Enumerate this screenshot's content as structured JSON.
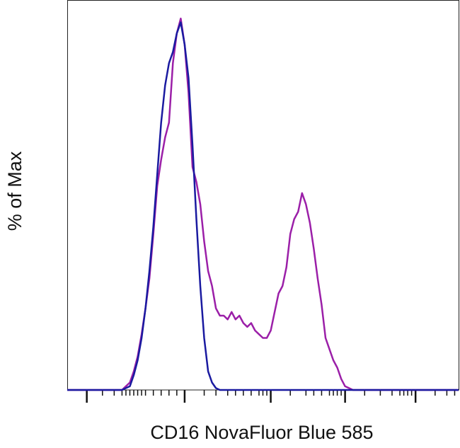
{
  "chart_data": {
    "type": "line",
    "y_label": "% of Max",
    "x_label": "CD16 NovaFluor Blue 585",
    "x": [
      0,
      10,
      14,
      15,
      16,
      17,
      18,
      19,
      20,
      21,
      22,
      23,
      24,
      25,
      26,
      27,
      28,
      29,
      30,
      31,
      32,
      33,
      34,
      35,
      36,
      37,
      38,
      39,
      40,
      41,
      42,
      43,
      44,
      45,
      46,
      47,
      48,
      49,
      50,
      51,
      52,
      53,
      54,
      55,
      56,
      57,
      58,
      59,
      60,
      61,
      62,
      63,
      64,
      65,
      66,
      67,
      68,
      69,
      70,
      71,
      72,
      73,
      74,
      75,
      76,
      77,
      78,
      80,
      85,
      90,
      95,
      100
    ],
    "series": [
      {
        "color": "#9b1fa8",
        "values": [
          0,
          0,
          0,
          1,
          2,
          5,
          9,
          15,
          22,
          30,
          42,
          55,
          62,
          68,
          72,
          88,
          96,
          100,
          93,
          80,
          60,
          56,
          50,
          40,
          32,
          28,
          22,
          20,
          20,
          19,
          21,
          19,
          20,
          18,
          17,
          18,
          16,
          15,
          14,
          14,
          16,
          21,
          26,
          28,
          33,
          42,
          46,
          48,
          53,
          50,
          45,
          38,
          30,
          23,
          14,
          11,
          8,
          6,
          3,
          1,
          0.5,
          0,
          0,
          0,
          0,
          0,
          0,
          0,
          0,
          0,
          0,
          0
        ]
      },
      {
        "color": "#1a1aa0",
        "values": [
          0,
          0,
          0,
          0.5,
          1,
          4,
          8,
          14,
          22,
          32,
          44,
          58,
          72,
          82,
          88,
          91,
          96,
          99,
          93,
          84,
          66,
          46,
          28,
          14,
          5,
          2,
          0.5,
          0,
          0,
          0,
          0,
          0,
          0,
          0,
          0,
          0,
          0,
          0,
          0,
          0,
          0,
          0,
          0,
          0,
          0,
          0,
          0,
          0,
          0,
          0,
          0,
          0,
          0,
          0,
          0,
          0,
          0,
          0,
          0,
          0,
          0,
          0,
          0,
          0,
          0,
          0,
          0,
          0,
          0,
          0,
          0,
          0
        ]
      }
    ],
    "xlim": [
      0,
      100
    ],
    "ylim": [
      0,
      105
    ],
    "xticks": [
      5,
      30,
      52,
      71,
      89
    ],
    "xminorticks": [
      9,
      12,
      14,
      15,
      16,
      17,
      18,
      19,
      20,
      22,
      24,
      26,
      28,
      35,
      38,
      41,
      43,
      45,
      47,
      49,
      50,
      51,
      57,
      61,
      63,
      65,
      67,
      68,
      69,
      70,
      76,
      80,
      83,
      85,
      86,
      87,
      88,
      94,
      97,
      99
    ]
  }
}
